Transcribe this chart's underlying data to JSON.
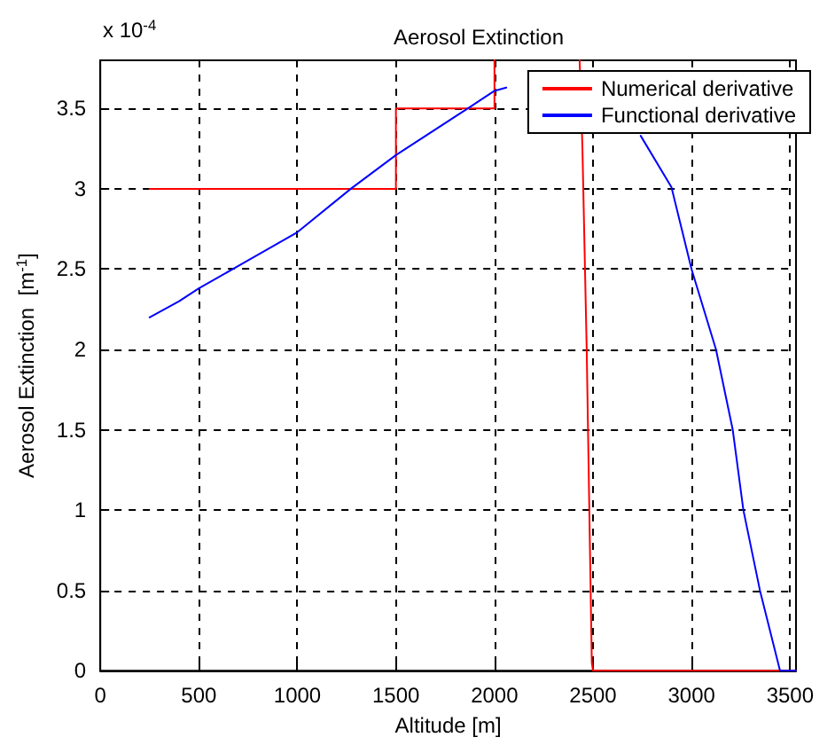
{
  "chart_data": {
    "type": "line",
    "title": "Aerosol Extinction",
    "xlabel": "Altitude [m]",
    "ylabel": "Aerosol Extinction  [m$^{-1}$]",
    "annotations": [
      "x 10$^{-4}$"
    ],
    "xlim": [
      0,
      3530
    ],
    "ylim": [
      0,
      3.8
    ],
    "xticks": [
      0,
      500,
      1000,
      1500,
      2000,
      2500,
      3000,
      3500
    ],
    "yticks": [
      0,
      0.5,
      1,
      1.5,
      2,
      2.5,
      3,
      3.5
    ],
    "grid": true,
    "legend": "top right",
    "line_style": "solid",
    "marker": "none",
    "series": [
      {
        "name": "Numerical derivative",
        "color": "#ff0000",
        "x": [
          250,
          1500,
          1500,
          2000,
          2000
        ],
        "values": [
          3.0,
          3.0,
          3.5,
          3.5,
          3.8
        ]
      },
      {
        "color": "#ff0000",
        "x": [
          2432,
          2446,
          2468,
          2494,
          2500,
          3530
        ],
        "values": [
          3.8,
          3.27,
          2.0,
          0.05,
          0,
          0
        ]
      },
      {
        "name": "Functional derivative",
        "color": "#0000ff",
        "x": [
          250,
          400,
          500,
          700,
          1000,
          1271,
          1500,
          1864,
          2000,
          2060
        ],
        "values": [
          2.2,
          2.3,
          2.38,
          2.52,
          2.73,
          3.0,
          3.21,
          3.5,
          3.61,
          3.63
        ]
      },
      {
        "color": "#0000ff",
        "x": [
          2742,
          2898,
          3000,
          3124,
          3209,
          3263,
          3347,
          3449,
          3530
        ],
        "values": [
          3.33,
          3.01,
          2.5,
          2.0,
          1.5,
          1.0,
          0.5,
          0,
          0
        ]
      }
    ]
  }
}
